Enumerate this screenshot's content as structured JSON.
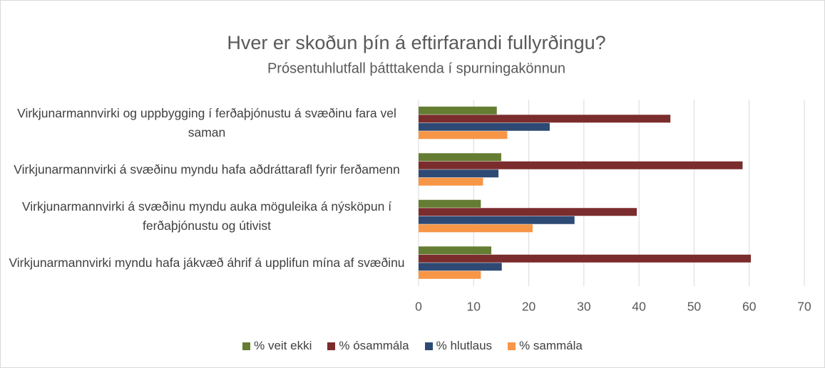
{
  "chart_data": {
    "type": "barh",
    "title": "Hver er skoðun þín á eftirfarandi fullyrðingu?",
    "subtitle": "Prósentuhlutfall þátttakenda í spurningakönnun",
    "categories": [
      "Virkjunarmannvirki og uppbygging í ferðaþjónustu á svæðinu fara vel saman",
      "Virkjunarmannvirki á svæðinu myndu hafa aðdráttarafl fyrir ferðamenn",
      "Virkjunarmannvirki á svæðinu myndu auka möguleika á nýsköpun í ferðaþjónustu og útivist",
      "Virkjunarmannvirki myndu hafa jákvæð áhrif á upplifun mína af svæðinu"
    ],
    "series": [
      {
        "name": "% veit ekki",
        "color": "#647d33",
        "values": [
          14.2,
          15.0,
          11.3,
          13.2
        ]
      },
      {
        "name": "% ósammála",
        "color": "#7b2c2c",
        "values": [
          45.7,
          58.8,
          39.6,
          60.3
        ]
      },
      {
        "name": "% hlutlaus",
        "color": "#2e4a74",
        "values": [
          23.8,
          14.5,
          28.3,
          15.1
        ]
      },
      {
        "name": "% sammála",
        "color": "#f79646",
        "values": [
          16.1,
          11.7,
          20.7,
          11.3
        ]
      }
    ],
    "xlim": [
      0,
      70
    ],
    "xticks": [
      0,
      10,
      20,
      30,
      40,
      50,
      60,
      70
    ],
    "grid": true,
    "legend": "bottom"
  }
}
